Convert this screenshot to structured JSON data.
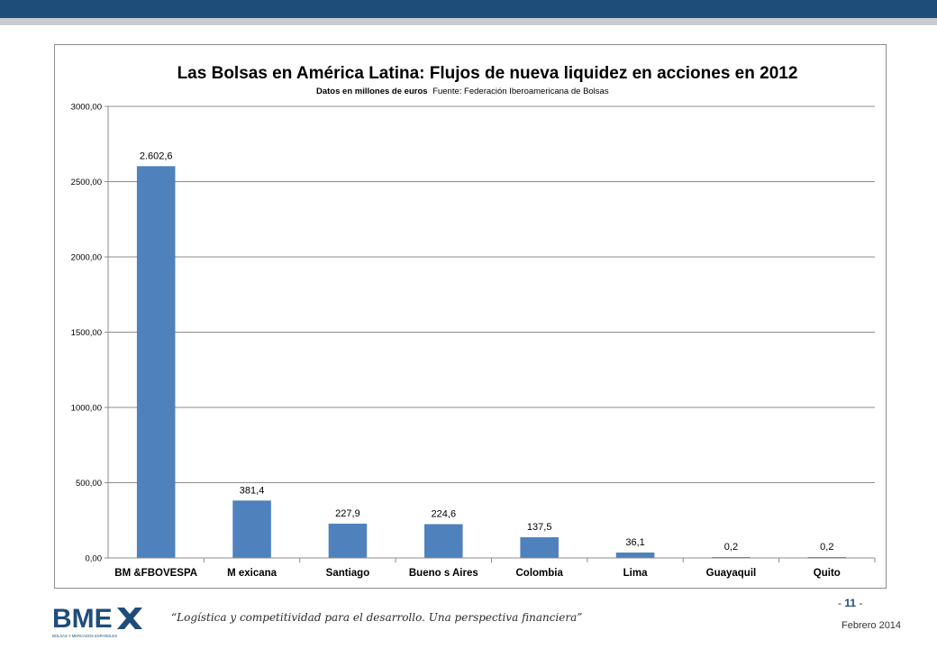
{
  "header": {
    "bar_color": "#1f4d7a",
    "stripe_color": "#c9ccd0"
  },
  "chart_data": {
    "type": "bar",
    "title": "Las Bolsas en América Latina: Flujos de nueva liquidez en acciones en 2012",
    "subtitle_bold": "Datos en millones de euros",
    "subtitle_source": "Fuente: Federación Iberoamericana de Bolsas",
    "categories": [
      "BM &FBOVESPA",
      "M exicana",
      "Santiago",
      "Bueno s Aires",
      "Colombia",
      "Lima",
      "Guayaquil",
      "Quito"
    ],
    "values": [
      2602.6,
      381.4,
      227.9,
      224.6,
      137.5,
      36.1,
      0.2,
      0.2
    ],
    "data_labels": [
      "2.602,6",
      "381,4",
      "227,9",
      "224,6",
      "137,5",
      "36,1",
      "0,2",
      "0,2"
    ],
    "yticks": [
      "0,00",
      "500,00",
      "1000,00",
      "1500,00",
      "2000,00",
      "2500,00",
      "3000,00"
    ],
    "ylim": [
      0,
      3000
    ],
    "ystep": 500,
    "grid": true,
    "bar_color": "#4f81bd"
  },
  "footer": {
    "logo_text": "BME",
    "logo_subtext": "BOLSAS Y MERCADOS ESPAÑOLES",
    "quote": "“Logística y competitividad para el desarrollo. Una perspectiva financiera”",
    "page_prefix": "- ",
    "page_number": "11",
    "page_suffix": " -",
    "date": "Febrero 2014"
  }
}
